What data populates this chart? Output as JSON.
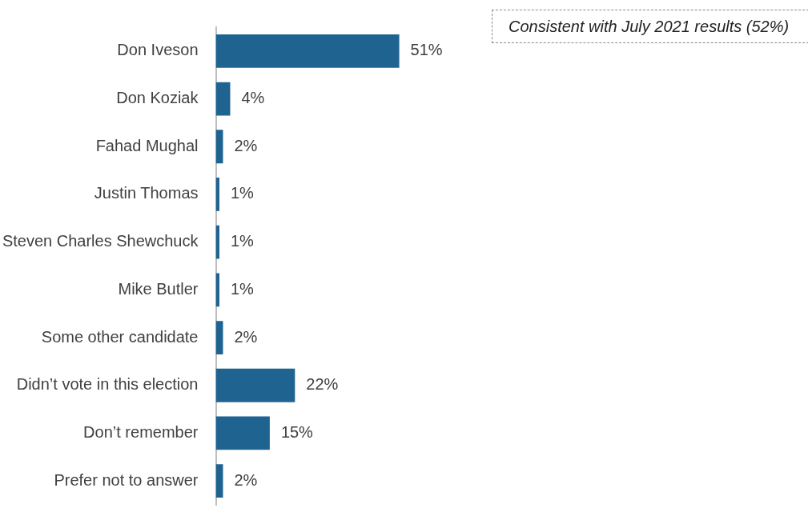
{
  "chart_data": {
    "type": "bar",
    "orientation": "horizontal",
    "color": "#1f6391",
    "categories": [
      "Don Iveson",
      "Don Koziak",
      "Fahad Mughal",
      "Justin Thomas",
      "Steven Charles Shewchuck",
      "Mike Butler",
      "Some other candidate",
      "Didn’t vote in this election",
      "Don’t remember",
      "Prefer not to answer"
    ],
    "values": [
      51,
      4,
      2,
      1,
      1,
      1,
      2,
      22,
      15,
      2
    ],
    "value_labels": [
      "51%",
      "4%",
      "2%",
      "1%",
      "1%",
      "1%",
      "2%",
      "22%",
      "15%",
      "2%"
    ],
    "annotations": [
      "Consistent with July 2021 results (52%)"
    ]
  }
}
